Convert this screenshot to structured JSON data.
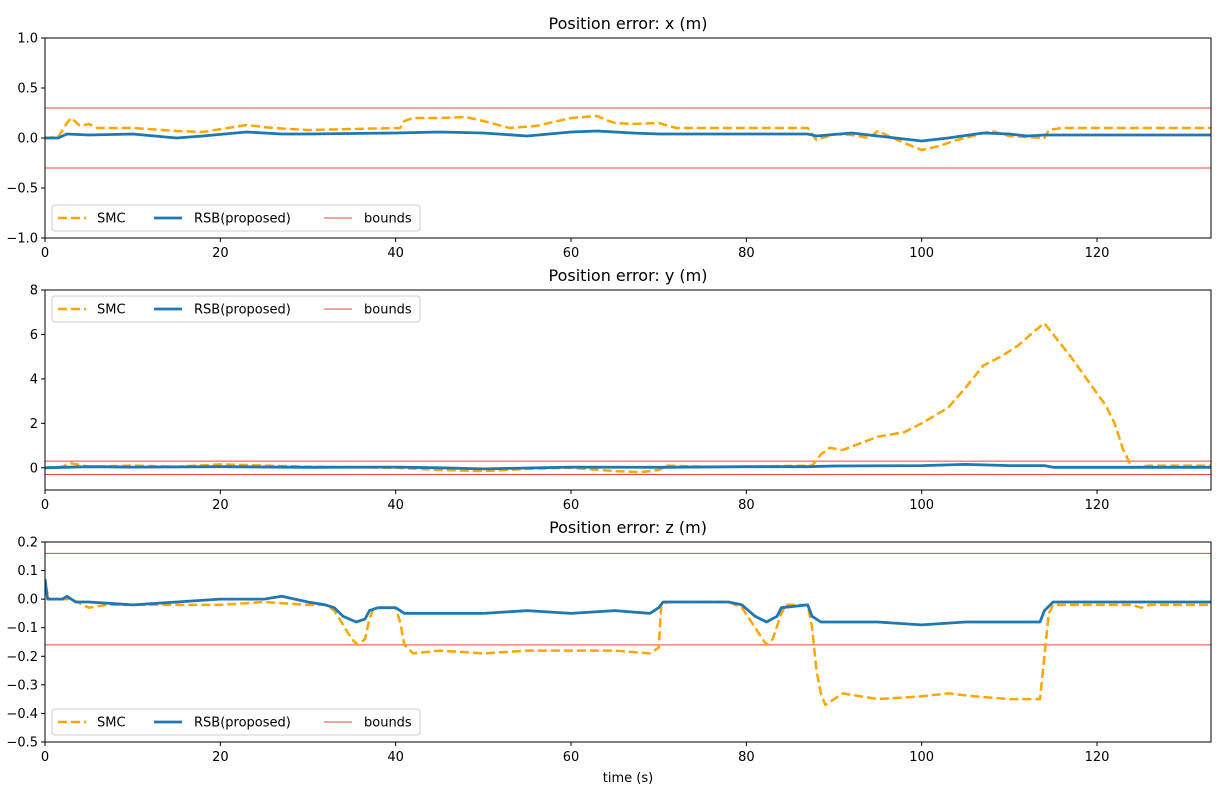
{
  "chart_data": [
    {
      "type": "line",
      "title": "Position error: x (m)",
      "xlabel": "",
      "ylabel": "",
      "xlim": [
        0,
        133
      ],
      "ylim": [
        -1.0,
        1.0
      ],
      "xticks": [
        "0",
        "20",
        "40",
        "60",
        "80",
        "100",
        "120"
      ],
      "yticks": [
        "−1.0",
        "−0.5",
        "0.0",
        "0.5",
        "1.0"
      ],
      "legend_position": "lower-left",
      "bounds": [
        0.3,
        -0.3
      ],
      "series": [
        {
          "name": "SMC",
          "style": "dashed",
          "color": "#ffa500",
          "points": [
            [
              0,
              0
            ],
            [
              1.5,
              0.01
            ],
            [
              2.5,
              0.15
            ],
            [
              3,
              0.2
            ],
            [
              4,
              0.12
            ],
            [
              5,
              0.14
            ],
            [
              6,
              0.1
            ],
            [
              10,
              0.1
            ],
            [
              15,
              0.07
            ],
            [
              18,
              0.06
            ],
            [
              23,
              0.13
            ],
            [
              26,
              0.1
            ],
            [
              30,
              0.08
            ],
            [
              35,
              0.09
            ],
            [
              40.5,
              0.1
            ],
            [
              41,
              0.17
            ],
            [
              42,
              0.2
            ],
            [
              45,
              0.2
            ],
            [
              48,
              0.21
            ],
            [
              50,
              0.17
            ],
            [
              53,
              0.1
            ],
            [
              56,
              0.12
            ],
            [
              60,
              0.2
            ],
            [
              63,
              0.22
            ],
            [
              64,
              0.18
            ],
            [
              65,
              0.15
            ],
            [
              67,
              0.14
            ],
            [
              70,
              0.15
            ],
            [
              72,
              0.1
            ],
            [
              80,
              0.1
            ],
            [
              87,
              0.1
            ],
            [
              88,
              -0.02
            ],
            [
              90,
              0.04
            ],
            [
              92,
              0.03
            ],
            [
              94,
              0.0
            ],
            [
              95,
              0.07
            ],
            [
              96,
              0.03
            ],
            [
              98,
              -0.05
            ],
            [
              100,
              -0.12
            ],
            [
              102,
              -0.08
            ],
            [
              104,
              -0.02
            ],
            [
              108,
              0.07
            ],
            [
              110,
              0.02
            ],
            [
              112,
              0.01
            ],
            [
              114,
              0.0
            ],
            [
              114.5,
              0.08
            ],
            [
              116,
              0.1
            ],
            [
              133,
              0.1
            ]
          ]
        },
        {
          "name": "RSB(proposed)",
          "style": "solid",
          "color": "#1f77b4",
          "points": [
            [
              0,
              0
            ],
            [
              1.5,
              0.0
            ],
            [
              2.5,
              0.04
            ],
            [
              5,
              0.03
            ],
            [
              10,
              0.04
            ],
            [
              15,
              0.0
            ],
            [
              18,
              0.02
            ],
            [
              23,
              0.06
            ],
            [
              27,
              0.04
            ],
            [
              30,
              0.04
            ],
            [
              40,
              0.05
            ],
            [
              45,
              0.06
            ],
            [
              50,
              0.05
            ],
            [
              55,
              0.02
            ],
            [
              60,
              0.06
            ],
            [
              63,
              0.07
            ],
            [
              67,
              0.05
            ],
            [
              70,
              0.04
            ],
            [
              80,
              0.04
            ],
            [
              87,
              0.04
            ],
            [
              88,
              0.02
            ],
            [
              92,
              0.05
            ],
            [
              95,
              0.02
            ],
            [
              98,
              -0.01
            ],
            [
              100,
              -0.03
            ],
            [
              103,
              0.0
            ],
            [
              107,
              0.05
            ],
            [
              110,
              0.04
            ],
            [
              112,
              0.02
            ],
            [
              114,
              0.03
            ],
            [
              133,
              0.03
            ]
          ]
        }
      ]
    },
    {
      "type": "line",
      "title": "Position error: y (m)",
      "xlabel": "",
      "ylabel": "",
      "xlim": [
        0,
        133
      ],
      "ylim": [
        -1,
        8
      ],
      "xticks": [
        "0",
        "20",
        "40",
        "60",
        "80",
        "100",
        "120"
      ],
      "yticks": [
        "0",
        "2",
        "4",
        "6",
        "8"
      ],
      "legend_position": "upper-left",
      "bounds": [
        0.3,
        -0.3
      ],
      "series": [
        {
          "name": "SMC",
          "style": "dashed",
          "color": "#ffa500",
          "points": [
            [
              0,
              0
            ],
            [
              2,
              0.05
            ],
            [
              3,
              0.2
            ],
            [
              5,
              0.05
            ],
            [
              10,
              0.1
            ],
            [
              15,
              0.05
            ],
            [
              20,
              0.15
            ],
            [
              25,
              0.1
            ],
            [
              30,
              0.05
            ],
            [
              40,
              0.0
            ],
            [
              45,
              -0.1
            ],
            [
              50,
              -0.15
            ],
            [
              55,
              -0.05
            ],
            [
              60,
              0.0
            ],
            [
              65,
              -0.15
            ],
            [
              68,
              -0.2
            ],
            [
              70,
              -0.1
            ],
            [
              71,
              0.1
            ],
            [
              75,
              0.05
            ],
            [
              80,
              0.05
            ],
            [
              87.5,
              0.1
            ],
            [
              88.5,
              0.6
            ],
            [
              89.5,
              0.9
            ],
            [
              91,
              0.8
            ],
            [
              93,
              1.1
            ],
            [
              95,
              1.4
            ],
            [
              98,
              1.6
            ],
            [
              100,
              2.0
            ],
            [
              103,
              2.7
            ],
            [
              105,
              3.6
            ],
            [
              107,
              4.6
            ],
            [
              109,
              5.0
            ],
            [
              111,
              5.5
            ],
            [
              113,
              6.2
            ],
            [
              114,
              6.5
            ],
            [
              115,
              6.0
            ],
            [
              117,
              5.0
            ],
            [
              119,
              3.9
            ],
            [
              121,
              2.8
            ],
            [
              122,
              2.0
            ],
            [
              123,
              0.8
            ],
            [
              124,
              0.0
            ],
            [
              126,
              0.1
            ],
            [
              133,
              0.1
            ]
          ]
        },
        {
          "name": "RSB(proposed)",
          "style": "solid",
          "color": "#1f77b4",
          "points": [
            [
              0,
              0
            ],
            [
              5,
              0.05
            ],
            [
              10,
              0.03
            ],
            [
              20,
              0.05
            ],
            [
              30,
              0.02
            ],
            [
              40,
              0.03
            ],
            [
              45,
              0.0
            ],
            [
              50,
              -0.05
            ],
            [
              60,
              0.03
            ],
            [
              70,
              0.02
            ],
            [
              80,
              0.05
            ],
            [
              87,
              0.05
            ],
            [
              90,
              0.08
            ],
            [
              100,
              0.1
            ],
            [
              105,
              0.15
            ],
            [
              110,
              0.1
            ],
            [
              114,
              0.1
            ],
            [
              115,
              0.02
            ],
            [
              133,
              0.02
            ]
          ]
        }
      ]
    },
    {
      "type": "line",
      "title": "Position error: z (m)",
      "xlabel": "time (s)",
      "ylabel": "",
      "xlim": [
        0,
        133
      ],
      "ylim": [
        -0.5,
        0.2
      ],
      "xticks": [
        "0",
        "20",
        "40",
        "60",
        "80",
        "100",
        "120"
      ],
      "yticks": [
        "−0.5",
        "−0.4",
        "−0.3",
        "−0.2",
        "−0.1",
        "0.0",
        "0.1",
        "0.2"
      ],
      "legend_position": "lower-left",
      "bounds": [
        0.16,
        -0.16
      ],
      "series": [
        {
          "name": "SMC",
          "style": "dashed",
          "color": "#ffa500",
          "points": [
            [
              0,
              0.05
            ],
            [
              0.5,
              0.0
            ],
            [
              2,
              0.0
            ],
            [
              3,
              0.0
            ],
            [
              5,
              -0.03
            ],
            [
              7,
              -0.02
            ],
            [
              15,
              -0.02
            ],
            [
              20,
              -0.02
            ],
            [
              25,
              -0.01
            ],
            [
              30,
              -0.02
            ],
            [
              32,
              -0.02
            ],
            [
              33,
              -0.04
            ],
            [
              34,
              -0.09
            ],
            [
              35,
              -0.14
            ],
            [
              35.7,
              -0.16
            ],
            [
              36.5,
              -0.14
            ],
            [
              37,
              -0.07
            ],
            [
              37.5,
              -0.03
            ],
            [
              40,
              -0.03
            ],
            [
              40.5,
              -0.08
            ],
            [
              41,
              -0.16
            ],
            [
              42,
              -0.19
            ],
            [
              45,
              -0.18
            ],
            [
              50,
              -0.19
            ],
            [
              55,
              -0.18
            ],
            [
              60,
              -0.18
            ],
            [
              65,
              -0.18
            ],
            [
              69,
              -0.19
            ],
            [
              70,
              -0.17
            ],
            [
              70.3,
              -0.02
            ],
            [
              71,
              -0.01
            ],
            [
              78,
              -0.01
            ],
            [
              79.5,
              -0.03
            ],
            [
              81,
              -0.1
            ],
            [
              82.3,
              -0.16
            ],
            [
              83,
              -0.14
            ],
            [
              84,
              -0.05
            ],
            [
              84.5,
              -0.02
            ],
            [
              87,
              -0.02
            ],
            [
              87.5,
              -0.1
            ],
            [
              88,
              -0.25
            ],
            [
              88.5,
              -0.33
            ],
            [
              89,
              -0.37
            ],
            [
              91,
              -0.33
            ],
            [
              95,
              -0.35
            ],
            [
              100,
              -0.34
            ],
            [
              103,
              -0.33
            ],
            [
              106,
              -0.34
            ],
            [
              110,
              -0.35
            ],
            [
              113.5,
              -0.35
            ],
            [
              114,
              -0.2
            ],
            [
              114.5,
              -0.05
            ],
            [
              115,
              -0.02
            ],
            [
              120,
              -0.02
            ],
            [
              124,
              -0.02
            ],
            [
              125,
              -0.03
            ],
            [
              126,
              -0.02
            ],
            [
              133,
              -0.02
            ]
          ]
        },
        {
          "name": "RSB(proposed)",
          "style": "solid",
          "color": "#1f77b4",
          "points": [
            [
              0,
              0.07
            ],
            [
              0.3,
              0.0
            ],
            [
              2,
              0.0
            ],
            [
              2.5,
              0.01
            ],
            [
              3.5,
              -0.01
            ],
            [
              5,
              -0.01
            ],
            [
              10,
              -0.02
            ],
            [
              15,
              -0.01
            ],
            [
              20,
              0.0
            ],
            [
              25,
              0.0
            ],
            [
              27,
              0.01
            ],
            [
              30,
              -0.01
            ],
            [
              32,
              -0.02
            ],
            [
              33,
              -0.03
            ],
            [
              34,
              -0.06
            ],
            [
              35.5,
              -0.08
            ],
            [
              36.5,
              -0.07
            ],
            [
              37,
              -0.04
            ],
            [
              38,
              -0.03
            ],
            [
              40,
              -0.03
            ],
            [
              41,
              -0.05
            ],
            [
              45,
              -0.05
            ],
            [
              50,
              -0.05
            ],
            [
              55,
              -0.04
            ],
            [
              60,
              -0.05
            ],
            [
              65,
              -0.04
            ],
            [
              69,
              -0.05
            ],
            [
              70,
              -0.03
            ],
            [
              70.5,
              -0.01
            ],
            [
              78,
              -0.01
            ],
            [
              79.5,
              -0.02
            ],
            [
              81,
              -0.06
            ],
            [
              82.3,
              -0.08
            ],
            [
              83.5,
              -0.06
            ],
            [
              84,
              -0.03
            ],
            [
              87,
              -0.02
            ],
            [
              87.5,
              -0.06
            ],
            [
              88.5,
              -0.08
            ],
            [
              95,
              -0.08
            ],
            [
              100,
              -0.09
            ],
            [
              105,
              -0.08
            ],
            [
              110,
              -0.08
            ],
            [
              113.5,
              -0.08
            ],
            [
              114,
              -0.04
            ],
            [
              115,
              -0.01
            ],
            [
              133,
              -0.01
            ]
          ]
        }
      ]
    }
  ],
  "legend": {
    "smc_label": "SMC",
    "rsb_label": "RSB(proposed)",
    "bounds_label": "bounds",
    "bounds_color": "#e8463c"
  }
}
